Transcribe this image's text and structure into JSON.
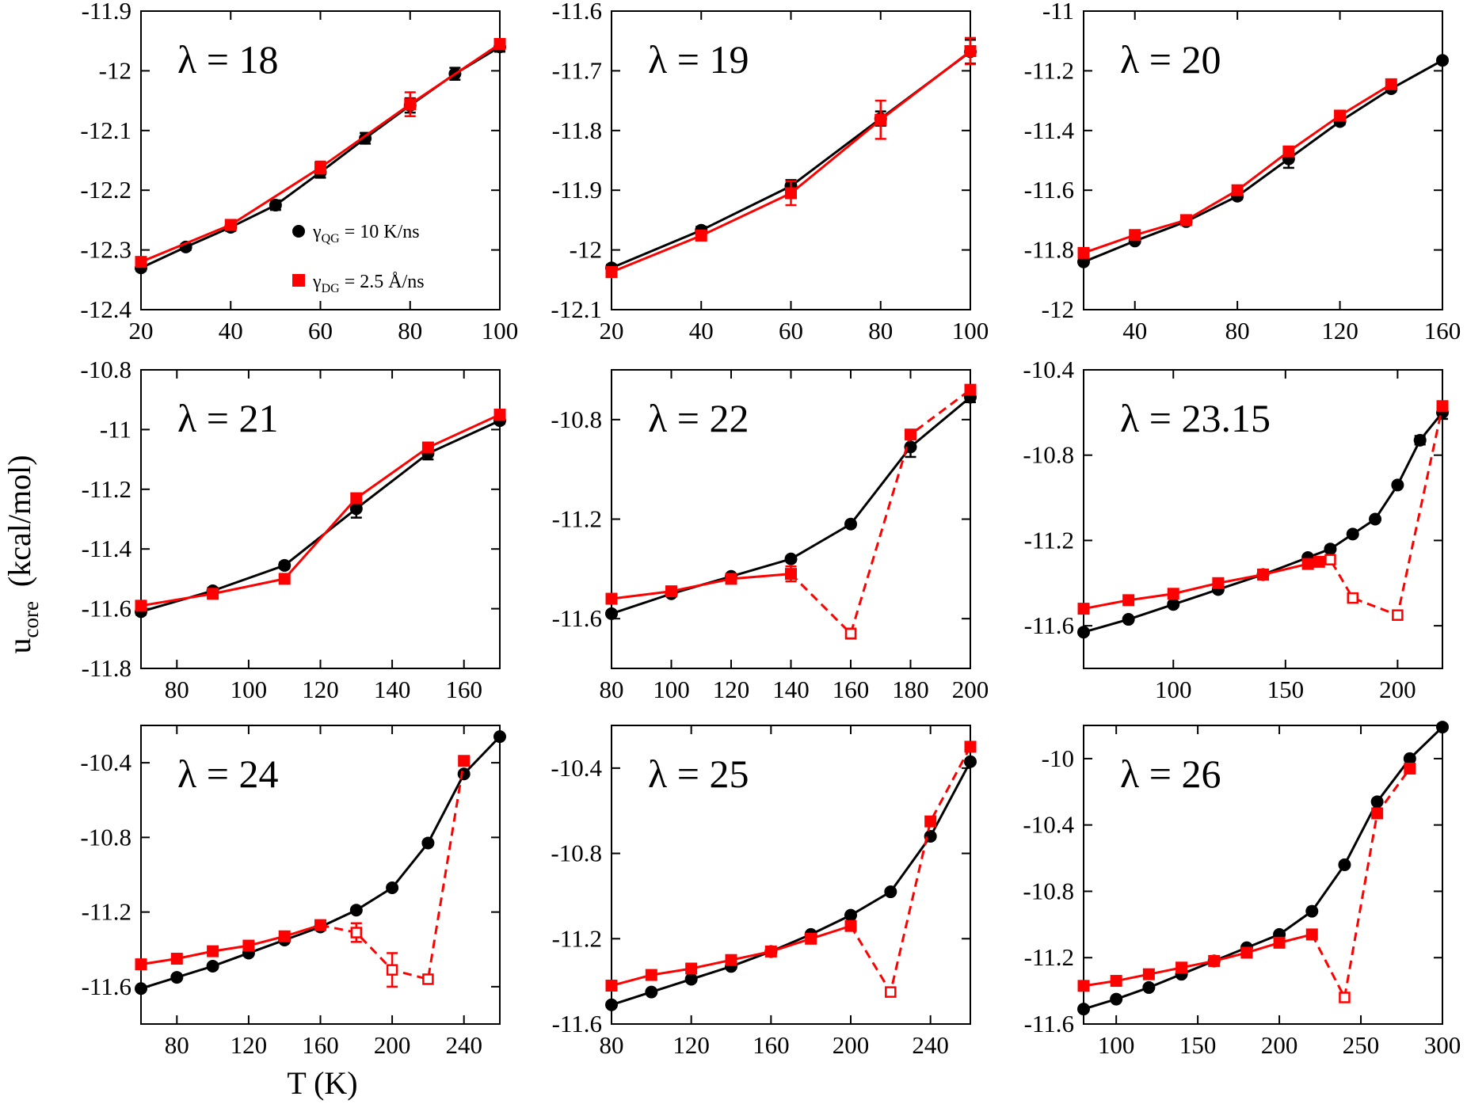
{
  "figure": {
    "xlabel": "T (K)",
    "ylabel_main": "u",
    "ylabel_sub": "core",
    "ylabel_unit": "(kcal/mol)"
  },
  "legend": {
    "items": [
      {
        "symbol": "γ",
        "sub": "QG",
        "rest": " = 10 K/ns",
        "marker": "circle",
        "color": "#000000"
      },
      {
        "symbol": "γ",
        "sub": "DG",
        "rest": " = 2.5 Å/ns",
        "marker": "square",
        "color": "#ff0000"
      }
    ]
  },
  "colors": {
    "qg": "#000000",
    "dg": "#ff0000"
  },
  "chart_data": [
    {
      "type": "line",
      "title": "λ = 18",
      "xlim": [
        20,
        100
      ],
      "ylim": [
        -12.4,
        -11.9
      ],
      "xticks": [
        20,
        40,
        60,
        80,
        100
      ],
      "xtick_labels": [
        "20",
        "40",
        "60",
        "80",
        "100"
      ],
      "yticks": [
        -12.4,
        -12.3,
        -12.2,
        -12.1,
        -12,
        -11.9
      ],
      "ytick_labels": [
        "-12.4",
        "-12.3",
        "-12.2",
        "-12.1",
        "-12",
        "-11.9"
      ],
      "series": [
        {
          "name": "γQG = 10 K/ns",
          "marker": "circle",
          "x": [
            20,
            30,
            40,
            50,
            60,
            70,
            80,
            90,
            100
          ],
          "y": [
            -12.33,
            -12.295,
            -12.262,
            -12.225,
            -12.17,
            -12.113,
            -12.058,
            -12.005,
            -11.96
          ],
          "err": [
            0.005,
            0.005,
            0.006,
            0.008,
            0.009,
            0.009,
            0.012,
            0.01,
            0.008
          ]
        },
        {
          "name": "γDG = 2.5 Å/ns",
          "marker": "square",
          "x": [
            20,
            40,
            60,
            80,
            100
          ],
          "y": [
            -12.32,
            -12.258,
            -12.162,
            -12.056,
            -11.955
          ],
          "err": [
            0.006,
            0.005,
            0.01,
            0.02,
            0.006
          ]
        }
      ]
    },
    {
      "type": "line",
      "title": "λ = 19",
      "xlim": [
        20,
        100
      ],
      "ylim": [
        -12.1,
        -11.6
      ],
      "xticks": [
        20,
        40,
        60,
        80,
        100
      ],
      "xtick_labels": [
        "20",
        "40",
        "60",
        "80",
        "100"
      ],
      "yticks": [
        -12.1,
        -12,
        -11.9,
        -11.8,
        -11.7,
        -11.6
      ],
      "ytick_labels": [
        "-12.1",
        "-12",
        "-11.9",
        "-11.8",
        "-11.7",
        "-11.6"
      ],
      "series": [
        {
          "name": "γQG = 10 K/ns",
          "marker": "circle",
          "x": [
            20,
            40,
            60,
            80,
            100
          ],
          "y": [
            -12.03,
            -11.967,
            -11.893,
            -11.78,
            -11.668
          ],
          "err": [
            0.005,
            0.006,
            0.01,
            0.012,
            0.02
          ]
        },
        {
          "name": "γDG = 2.5 Å/ns",
          "marker": "square",
          "x": [
            20,
            40,
            60,
            80,
            100
          ],
          "y": [
            -12.037,
            -11.976,
            -11.905,
            -11.782,
            -11.667
          ],
          "err": [
            0.005,
            0.006,
            0.02,
            0.032,
            0.022
          ]
        }
      ]
    },
    {
      "type": "line",
      "title": "λ = 20",
      "xlim": [
        20,
        160
      ],
      "ylim": [
        -12,
        -11
      ],
      "xticks": [
        40,
        80,
        120,
        160
      ],
      "xtick_labels": [
        "40",
        "80",
        "120",
        "160"
      ],
      "yticks": [
        -12,
        -11.8,
        -11.6,
        -11.4,
        -11.2,
        -11
      ],
      "ytick_labels": [
        "-12",
        "-11.8",
        "-11.6",
        "-11.4",
        "-11.2",
        "-11"
      ],
      "series": [
        {
          "name": "γQG = 10 K/ns",
          "marker": "circle",
          "x": [
            20,
            40,
            60,
            80,
            100,
            120,
            140,
            160
          ],
          "y": [
            -11.84,
            -11.77,
            -11.705,
            -11.62,
            -11.495,
            -11.37,
            -11.26,
            -11.165
          ],
          "err": [
            0.008,
            0.008,
            0.008,
            0.01,
            0.03,
            0.01,
            0.01,
            0.008
          ]
        },
        {
          "name": "γDG = 2.5 Å/ns",
          "marker": "square",
          "x": [
            20,
            40,
            60,
            80,
            100,
            120,
            140
          ],
          "y": [
            -11.81,
            -11.75,
            -11.7,
            -11.6,
            -11.47,
            -11.35,
            -11.245
          ],
          "err": [
            0.005,
            0.005,
            0.005,
            0.006,
            0.006,
            0.006,
            0.006
          ]
        }
      ]
    },
    {
      "type": "line",
      "title": "λ = 21",
      "xlim": [
        70,
        170
      ],
      "ylim": [
        -11.8,
        -10.8
      ],
      "xticks": [
        80,
        100,
        120,
        140,
        160
      ],
      "xtick_labels": [
        "80",
        "100",
        "120",
        "140",
        "160"
      ],
      "yticks": [
        -11.8,
        -11.6,
        -11.4,
        -11.2,
        -11,
        -10.8
      ],
      "ytick_labels": [
        "-11.8",
        "-11.6",
        "-11.4",
        "-11.2",
        "-11",
        "-10.8"
      ],
      "series": [
        {
          "name": "γQG = 10 K/ns",
          "marker": "circle",
          "x": [
            70,
            90,
            110,
            130,
            150,
            170
          ],
          "y": [
            -11.61,
            -11.54,
            -11.455,
            -11.265,
            -11.08,
            -10.97
          ],
          "err": [
            0.01,
            0.01,
            0.01,
            0.03,
            0.02,
            0.01
          ]
        },
        {
          "name": "γDG = 2.5 Å/ns",
          "marker": "square",
          "x": [
            70,
            90,
            110,
            130,
            150,
            170
          ],
          "y": [
            -11.59,
            -11.55,
            -11.5,
            -11.23,
            -11.06,
            -10.95
          ],
          "err": [
            0.01,
            0.01,
            0.01,
            0.01,
            0.01,
            0.01
          ]
        }
      ]
    },
    {
      "type": "line",
      "title": "λ = 22",
      "xlim": [
        80,
        200
      ],
      "ylim": [
        -11.8,
        -10.6
      ],
      "xticks": [
        80,
        100,
        120,
        140,
        160,
        180,
        200
      ],
      "xtick_labels": [
        "80",
        "100",
        "120",
        "140",
        "160",
        "180",
        "200"
      ],
      "yticks": [
        -11.6,
        -11.2,
        -10.8
      ],
      "ytick_labels": [
        "-11.6",
        "-11.2",
        "-10.8"
      ],
      "series": [
        {
          "name": "γQG = 10 K/ns",
          "marker": "circle",
          "x": [
            80,
            100,
            120,
            140,
            160,
            180,
            200
          ],
          "y": [
            -11.58,
            -11.5,
            -11.43,
            -11.36,
            -11.22,
            -10.91,
            -10.71
          ],
          "err": [
            0.01,
            0.01,
            0.01,
            0.01,
            0.01,
            0.04,
            0.02
          ]
        },
        {
          "name": "γDG = 2.5 Å/ns",
          "marker": "square",
          "x": [
            80,
            100,
            120,
            140,
            160,
            180,
            200
          ],
          "y": [
            -11.52,
            -11.49,
            -11.44,
            -11.42,
            -11.66,
            -10.86,
            -10.68
          ],
          "err": [
            0.01,
            0.01,
            0.01,
            0.03,
            0.02,
            0.01,
            0.01
          ],
          "hollow": [
            false,
            false,
            false,
            false,
            true,
            false,
            false
          ],
          "dashed_from_index": 3
        }
      ]
    },
    {
      "type": "line",
      "title": "λ = 23.15",
      "xlim": [
        60,
        220
      ],
      "ylim": [
        -11.8,
        -10.4
      ],
      "xticks": [
        100,
        150,
        200
      ],
      "xtick_labels": [
        "100",
        "150",
        "200"
      ],
      "yticks": [
        -11.6,
        -11.2,
        -10.8,
        -10.4
      ],
      "ytick_labels": [
        "-11.6",
        "-11.2",
        "-10.8",
        "-10.4"
      ],
      "series": [
        {
          "name": "γQG = 10 K/ns",
          "marker": "circle",
          "x": [
            60,
            80,
            100,
            120,
            140,
            160,
            170,
            180,
            190,
            200,
            210,
            220
          ],
          "y": [
            -11.63,
            -11.57,
            -11.5,
            -11.43,
            -11.36,
            -11.28,
            -11.24,
            -11.17,
            -11.1,
            -10.94,
            -10.73,
            -10.6
          ],
          "err": [
            0.01,
            0.01,
            0.01,
            0.01,
            0.01,
            0.01,
            0.01,
            0.01,
            0.01,
            0.01,
            0.02,
            0.03
          ]
        },
        {
          "name": "γDG = 2.5 Å/ns",
          "marker": "square",
          "x": [
            60,
            80,
            100,
            120,
            140,
            160,
            165,
            170,
            180,
            200,
            220
          ],
          "y": [
            -11.52,
            -11.48,
            -11.45,
            -11.4,
            -11.36,
            -11.31,
            -11.3,
            -11.29,
            -11.47,
            -11.55,
            -10.57
          ],
          "err": [
            0.01,
            0.01,
            0.01,
            0.01,
            0.01,
            0.01,
            0.01,
            0.01,
            0.01,
            0.01,
            0.01
          ],
          "hollow": [
            false,
            false,
            false,
            false,
            false,
            false,
            false,
            true,
            true,
            true,
            false
          ],
          "dashed_from_index": 6
        }
      ]
    },
    {
      "type": "line",
      "title": "λ = 24",
      "xlim": [
        60,
        260
      ],
      "ylim": [
        -11.8,
        -10.2
      ],
      "xticks": [
        80,
        120,
        160,
        200,
        240
      ],
      "xtick_labels": [
        "80",
        "120",
        "160",
        "200",
        "240"
      ],
      "yticks": [
        -11.6,
        -11.2,
        -10.8,
        -10.4
      ],
      "ytick_labels": [
        "-11.6",
        "-11.2",
        "-10.8",
        "-10.4"
      ],
      "series": [
        {
          "name": "γQG = 10 K/ns",
          "marker": "circle",
          "x": [
            60,
            80,
            100,
            120,
            140,
            160,
            180,
            200,
            220,
            240,
            260
          ],
          "y": [
            -11.61,
            -11.55,
            -11.49,
            -11.42,
            -11.35,
            -11.28,
            -11.19,
            -11.07,
            -10.83,
            -10.46,
            -10.26
          ],
          "err": [
            0.01,
            0.01,
            0.01,
            0.01,
            0.01,
            0.01,
            0.01,
            0.01,
            0.01,
            0.01,
            0.01
          ]
        },
        {
          "name": "γDG = 2.5 Å/ns",
          "marker": "square",
          "x": [
            60,
            80,
            100,
            120,
            140,
            160,
            180,
            200,
            220,
            240
          ],
          "y": [
            -11.48,
            -11.45,
            -11.41,
            -11.38,
            -11.33,
            -11.27,
            -11.31,
            -11.51,
            -11.56,
            -10.39
          ],
          "err": [
            0.01,
            0.01,
            0.01,
            0.01,
            0.01,
            0.01,
            0.05,
            0.09,
            0.01,
            0.01
          ],
          "hollow": [
            false,
            false,
            false,
            false,
            false,
            false,
            true,
            true,
            true,
            false
          ],
          "dashed_from_index": 5
        }
      ]
    },
    {
      "type": "line",
      "title": "λ = 25",
      "xlim": [
        80,
        260
      ],
      "ylim": [
        -11.6,
        -10.2
      ],
      "xticks": [
        80,
        120,
        160,
        200,
        240
      ],
      "xtick_labels": [
        "80",
        "120",
        "160",
        "200",
        "240"
      ],
      "yticks": [
        -11.6,
        -11.2,
        -10.8,
        -10.4
      ],
      "ytick_labels": [
        "-11.6",
        "-11.2",
        "-10.8",
        "-10.4"
      ],
      "series": [
        {
          "name": "γQG = 10 K/ns",
          "marker": "circle",
          "x": [
            80,
            100,
            120,
            140,
            160,
            180,
            200,
            220,
            240,
            260
          ],
          "y": [
            -11.51,
            -11.45,
            -11.39,
            -11.33,
            -11.26,
            -11.18,
            -11.09,
            -10.98,
            -10.72,
            -10.37
          ],
          "err": [
            0.01,
            0.01,
            0.01,
            0.01,
            0.01,
            0.01,
            0.01,
            0.01,
            0.01,
            0.01
          ]
        },
        {
          "name": "γDG = 2.5 Å/ns",
          "marker": "square",
          "x": [
            80,
            100,
            120,
            140,
            160,
            180,
            200,
            220,
            240,
            260
          ],
          "y": [
            -11.42,
            -11.37,
            -11.34,
            -11.3,
            -11.26,
            -11.2,
            -11.14,
            -11.45,
            -10.65,
            -10.3
          ],
          "err": [
            0.01,
            0.01,
            0.01,
            0.01,
            0.01,
            0.01,
            0.01,
            0.01,
            0.01,
            0.01
          ],
          "hollow": [
            false,
            false,
            false,
            false,
            false,
            false,
            false,
            true,
            false,
            false
          ],
          "dashed_from_index": 6
        }
      ]
    },
    {
      "type": "line",
      "title": "λ = 26",
      "xlim": [
        80,
        300
      ],
      "ylim": [
        -11.6,
        -9.8
      ],
      "xticks": [
        100,
        150,
        200,
        250,
        300
      ],
      "xtick_labels": [
        "100",
        "150",
        "200",
        "250",
        "300"
      ],
      "yticks": [
        -11.6,
        -11.2,
        -10.8,
        -10.4,
        -10
      ],
      "ytick_labels": [
        "-11.6",
        "-11.2",
        "-10.8",
        "-10.4",
        "-10"
      ],
      "series": [
        {
          "name": "γQG = 10 K/ns",
          "marker": "circle",
          "x": [
            80,
            100,
            120,
            140,
            160,
            180,
            200,
            220,
            240,
            260,
            280,
            300
          ],
          "y": [
            -11.51,
            -11.45,
            -11.38,
            -11.3,
            -11.22,
            -11.14,
            -11.06,
            -10.92,
            -10.64,
            -10.26,
            -10.0,
            -9.81
          ],
          "err": [
            0.01,
            0.01,
            0.01,
            0.01,
            0.01,
            0.01,
            0.01,
            0.01,
            0.01,
            0.01,
            0.01,
            0.01
          ]
        },
        {
          "name": "γDG = 2.5 Å/ns",
          "marker": "square",
          "x": [
            80,
            100,
            120,
            140,
            160,
            180,
            200,
            220,
            240,
            260,
            280
          ],
          "y": [
            -11.37,
            -11.34,
            -11.3,
            -11.26,
            -11.22,
            -11.17,
            -11.11,
            -11.06,
            -11.44,
            -10.33,
            -10.06
          ],
          "err": [
            0.01,
            0.01,
            0.01,
            0.01,
            0.01,
            0.01,
            0.01,
            0.01,
            0.01,
            0.01,
            0.01
          ],
          "hollow": [
            false,
            false,
            false,
            false,
            false,
            false,
            false,
            false,
            true,
            false,
            false
          ],
          "dashed_from_index": 7
        }
      ]
    }
  ]
}
